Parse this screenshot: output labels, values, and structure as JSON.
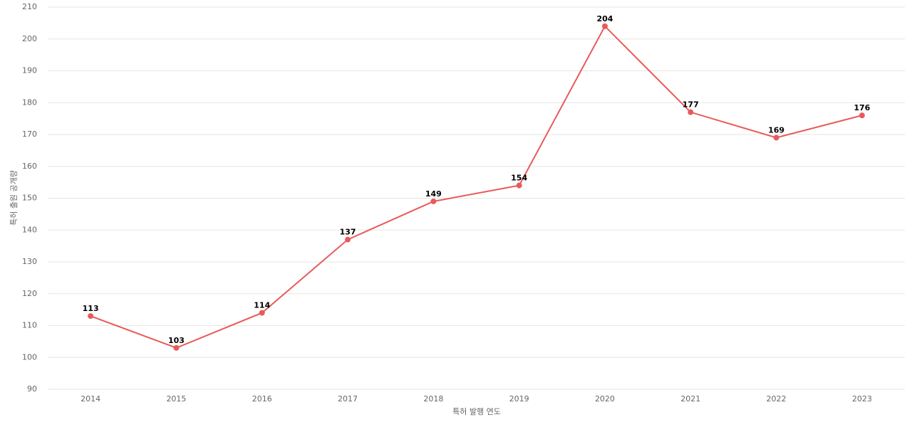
{
  "chart_data": {
    "type": "line",
    "x_label": "특허 발행 연도",
    "y_label": "특허 출원 공개량",
    "categories": [
      "2014",
      "2015",
      "2016",
      "2017",
      "2018",
      "2019",
      "2020",
      "2021",
      "2022",
      "2023"
    ],
    "values": [
      113,
      103,
      114,
      137,
      149,
      154,
      204,
      177,
      169,
      176
    ],
    "color": "#e85a5a",
    "ylim": [
      90,
      210
    ],
    "yticks": [
      90,
      100,
      110,
      120,
      130,
      140,
      150,
      160,
      170,
      180,
      190,
      200,
      210
    ],
    "grid": true
  }
}
